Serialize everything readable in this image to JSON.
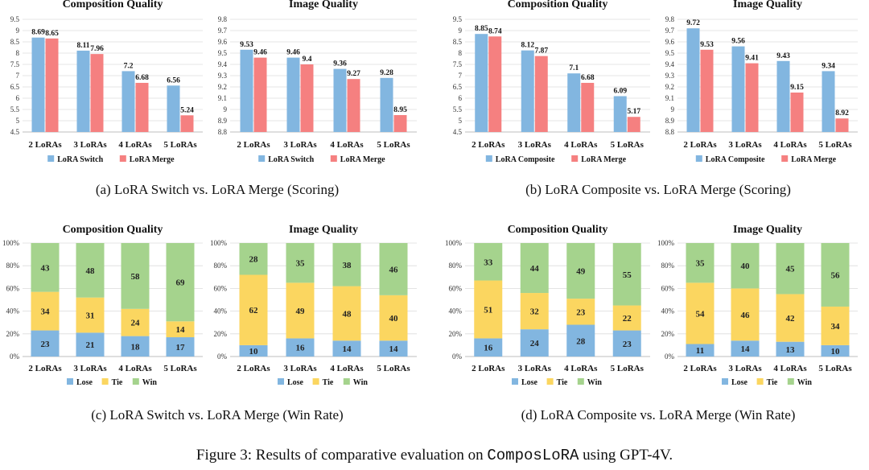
{
  "colors": {
    "blue": "#82b6e0",
    "red": "#f58080",
    "yellow": "#fbd660",
    "green": "#a5d38d",
    "grid": "#dcdcdc"
  },
  "captions": {
    "a": "(a)  LoRA Switch vs. LoRA Merge (Scoring)",
    "b": "(b)  LoRA Composite vs. LoRA Merge (Scoring)",
    "c": "(c)  LoRA Switch vs. LoRA Merge (Win Rate)",
    "d": "(d)  LoRA Composite vs. LoRA Merge (Win Rate)"
  },
  "figure_caption": {
    "prefix": "Figure 3: Results of comparative evaluation on ",
    "code": "ComposLoRA",
    "suffix": " using GPT-4V."
  },
  "chart_data": [
    {
      "type": "bar",
      "title": "Composition Quality",
      "categories": [
        "2 LoRAs",
        "3 LoRAs",
        "4 LoRAs",
        "5 LoRAs"
      ],
      "ylim": [
        4.5,
        9.5
      ],
      "yticks": [
        "4.5",
        "5",
        "5.5",
        "6",
        "6.5",
        "7",
        "7.5",
        "8",
        "8.5",
        "9",
        "9.5"
      ],
      "series": [
        {
          "name": "LoRA Switch",
          "color": "#82b6e0",
          "values": [
            8.69,
            8.11,
            7.2,
            6.56
          ],
          "labels": [
            "8.69",
            "8.11",
            "7.2",
            "6.56"
          ]
        },
        {
          "name": "LoRA Merge",
          "color": "#f58080",
          "values": [
            8.65,
            7.96,
            6.68,
            5.24
          ],
          "labels": [
            "8.65",
            "7.96",
            "6.68",
            "5.24"
          ]
        }
      ],
      "grid": true,
      "legend": "bottom"
    },
    {
      "type": "bar",
      "title": "Image Quality",
      "categories": [
        "2 LoRAs",
        "3 LoRAs",
        "4 LoRAs",
        "5 LoRAs"
      ],
      "ylim": [
        8.8,
        9.8
      ],
      "yticks": [
        "8.8",
        "8.9",
        "9",
        "9.1",
        "9.2",
        "9.3",
        "9.4",
        "9.5",
        "9.6",
        "9.7",
        "9.8"
      ],
      "series": [
        {
          "name": "LoRA Switch",
          "color": "#82b6e0",
          "values": [
            9.53,
            9.46,
            9.36,
            9.28
          ],
          "labels": [
            "9.53",
            "9.46",
            "9.36",
            "9.28"
          ]
        },
        {
          "name": "LoRA Merge",
          "color": "#f58080",
          "values": [
            9.46,
            9.4,
            9.27,
            8.95
          ],
          "labels": [
            "9.46",
            "9.4",
            "9.27",
            "8.95"
          ]
        }
      ],
      "grid": true,
      "legend": "bottom"
    },
    {
      "type": "bar",
      "title": "Composition Quality",
      "categories": [
        "2 LoRAs",
        "3 LoRAs",
        "4 LoRAs",
        "5 LoRAs"
      ],
      "ylim": [
        4.5,
        9.5
      ],
      "yticks": [
        "4.5",
        "5",
        "5.5",
        "6",
        "6.5",
        "7",
        "7.5",
        "8",
        "8.5",
        "9",
        "9.5"
      ],
      "series": [
        {
          "name": "LoRA Composite",
          "color": "#82b6e0",
          "values": [
            8.85,
            8.12,
            7.1,
            6.09
          ],
          "labels": [
            "8.85",
            "8.12",
            "7.1",
            "6.09"
          ]
        },
        {
          "name": "LoRA Merge",
          "color": "#f58080",
          "values": [
            8.74,
            7.87,
            6.68,
            5.17
          ],
          "labels": [
            "8.74",
            "7.87",
            "6.68",
            "5.17"
          ]
        }
      ],
      "grid": true,
      "legend": "bottom"
    },
    {
      "type": "bar",
      "title": "Image Quality",
      "categories": [
        "2 LoRAs",
        "3 LoRAs",
        "4 LoRAs",
        "5 LoRAs"
      ],
      "ylim": [
        8.8,
        9.8
      ],
      "yticks": [
        "8.8",
        "8.9",
        "9",
        "9.1",
        "9.2",
        "9.3",
        "9.4",
        "9.5",
        "9.6",
        "9.7",
        "9.8"
      ],
      "series": [
        {
          "name": "LoRA Composite",
          "color": "#82b6e0",
          "values": [
            9.72,
            9.56,
            9.43,
            9.34
          ],
          "labels": [
            "9.72",
            "9.56",
            "9.43",
            "9.34"
          ]
        },
        {
          "name": "LoRA Merge",
          "color": "#f58080",
          "values": [
            9.53,
            9.41,
            9.15,
            8.92
          ],
          "labels": [
            "9.53",
            "9.41",
            "9.15",
            "8.92"
          ]
        }
      ],
      "grid": true,
      "legend": "bottom"
    },
    {
      "type": "stacked-bar",
      "title": "Composition Quality",
      "categories": [
        "2 LoRAs",
        "3 LoRAs",
        "4 LoRAs",
        "5 LoRAs"
      ],
      "ylim": [
        0,
        100
      ],
      "yticks": [
        "0%",
        "20%",
        "40%",
        "60%",
        "80%",
        "100%"
      ],
      "series": [
        {
          "name": "Lose",
          "color": "#82b6e0",
          "values": [
            23,
            21,
            18,
            17
          ]
        },
        {
          "name": "Tie",
          "color": "#fbd660",
          "values": [
            34,
            31,
            24,
            14
          ]
        },
        {
          "name": "Win",
          "color": "#a5d38d",
          "values": [
            43,
            48,
            58,
            69
          ]
        }
      ],
      "grid": true,
      "legend": "bottom"
    },
    {
      "type": "stacked-bar",
      "title": "Image Quality",
      "categories": [
        "2 LoRAs",
        "3 LoRAs",
        "4 LoRAs",
        "5 LoRAs"
      ],
      "ylim": [
        0,
        100
      ],
      "yticks": [
        "0%",
        "20%",
        "40%",
        "60%",
        "80%",
        "100%"
      ],
      "series": [
        {
          "name": "Lose",
          "color": "#82b6e0",
          "values": [
            10,
            16,
            14,
            14
          ]
        },
        {
          "name": "Tie",
          "color": "#fbd660",
          "values": [
            62,
            49,
            48,
            40
          ]
        },
        {
          "name": "Win",
          "color": "#a5d38d",
          "values": [
            28,
            35,
            38,
            46
          ]
        }
      ],
      "grid": true,
      "legend": "bottom"
    },
    {
      "type": "stacked-bar",
      "title": "Composition Quality",
      "categories": [
        "2 LoRAs",
        "3 LoRAs",
        "4 LoRAs",
        "5 LoRAs"
      ],
      "ylim": [
        0,
        100
      ],
      "yticks": [
        "0%",
        "20%",
        "40%",
        "60%",
        "80%",
        "100%"
      ],
      "series": [
        {
          "name": "Lose",
          "color": "#82b6e0",
          "values": [
            16,
            24,
            28,
            23
          ]
        },
        {
          "name": "Tie",
          "color": "#fbd660",
          "values": [
            51,
            32,
            23,
            22
          ]
        },
        {
          "name": "Win",
          "color": "#a5d38d",
          "values": [
            33,
            44,
            49,
            55
          ]
        }
      ],
      "grid": true,
      "legend": "bottom"
    },
    {
      "type": "stacked-bar",
      "title": "Image Quality",
      "categories": [
        "2 LoRAs",
        "3 LoRAs",
        "4 LoRAs",
        "5 LoRAs"
      ],
      "ylim": [
        0,
        100
      ],
      "yticks": [
        "0%",
        "20%",
        "40%",
        "60%",
        "80%",
        "100%"
      ],
      "series": [
        {
          "name": "Lose",
          "color": "#82b6e0",
          "values": [
            11,
            14,
            13,
            10
          ]
        },
        {
          "name": "Tie",
          "color": "#fbd660",
          "values": [
            54,
            46,
            42,
            34
          ]
        },
        {
          "name": "Win",
          "color": "#a5d38d",
          "values": [
            35,
            40,
            45,
            56
          ]
        }
      ],
      "grid": true,
      "legend": "bottom"
    }
  ]
}
